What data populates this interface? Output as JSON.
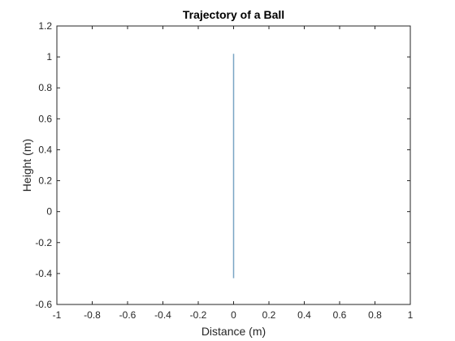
{
  "chart_data": {
    "type": "line",
    "title": "Trajectory of a Ball",
    "xlabel": "Distance (m)",
    "ylabel": "Height (m)",
    "xlim": [
      -1,
      1
    ],
    "ylim": [
      -0.6,
      1.2
    ],
    "xticks": [
      -1,
      -0.8,
      -0.6,
      -0.4,
      -0.2,
      0,
      0.2,
      0.4,
      0.6,
      0.8,
      1
    ],
    "xtick_labels": [
      "-1",
      "-0.8",
      "-0.6",
      "-0.4",
      "-0.2",
      "0",
      "0.2",
      "0.4",
      "0.6",
      "0.8",
      "1"
    ],
    "yticks": [
      -0.6,
      -0.4,
      -0.2,
      0,
      0.2,
      0.4,
      0.6,
      0.8,
      1,
      1.2
    ],
    "ytick_labels": [
      "-0.6",
      "-0.4",
      "-0.2",
      "0",
      "0.2",
      "0.4",
      "0.6",
      "0.8",
      "1",
      "1.2"
    ],
    "grid": false,
    "series": [
      {
        "color": "#7aa6c4",
        "x": [
          0,
          0
        ],
        "y": [
          -0.43,
          1.02
        ]
      }
    ]
  }
}
